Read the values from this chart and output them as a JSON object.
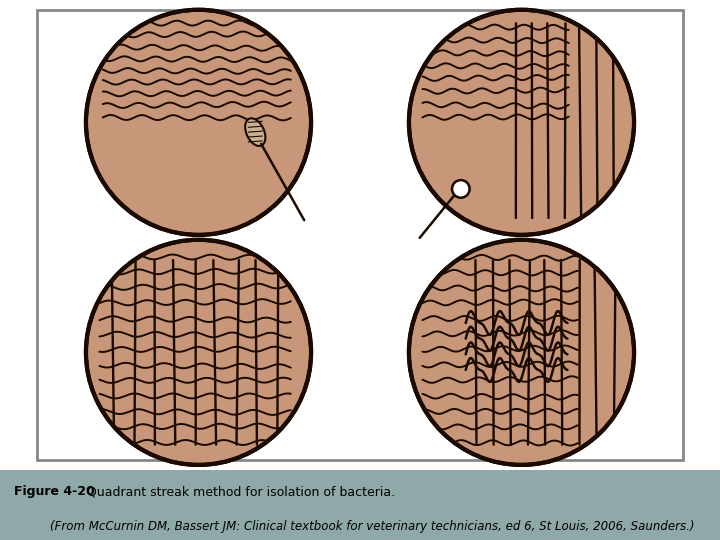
{
  "fig_width": 7.2,
  "fig_height": 5.4,
  "dpi": 100,
  "bg_color": "#ffffff",
  "plate_color": "#c8977a",
  "plate_edge_color": "#1a0a00",
  "streak_color": "#1a0a00",
  "caption_line1_bold": "Figure 4-20",
  "caption_line1_rest": " Quadrant streak method for isolation of bacteria.",
  "caption_line2": "(From McCurnin DM, Bassert JM: Clinical textbook for veterinary technicians, ed 6, St Louis, 2006, Saunders.)",
  "caption_bg": "#8fa8a8",
  "outer_box_color": "#888888"
}
